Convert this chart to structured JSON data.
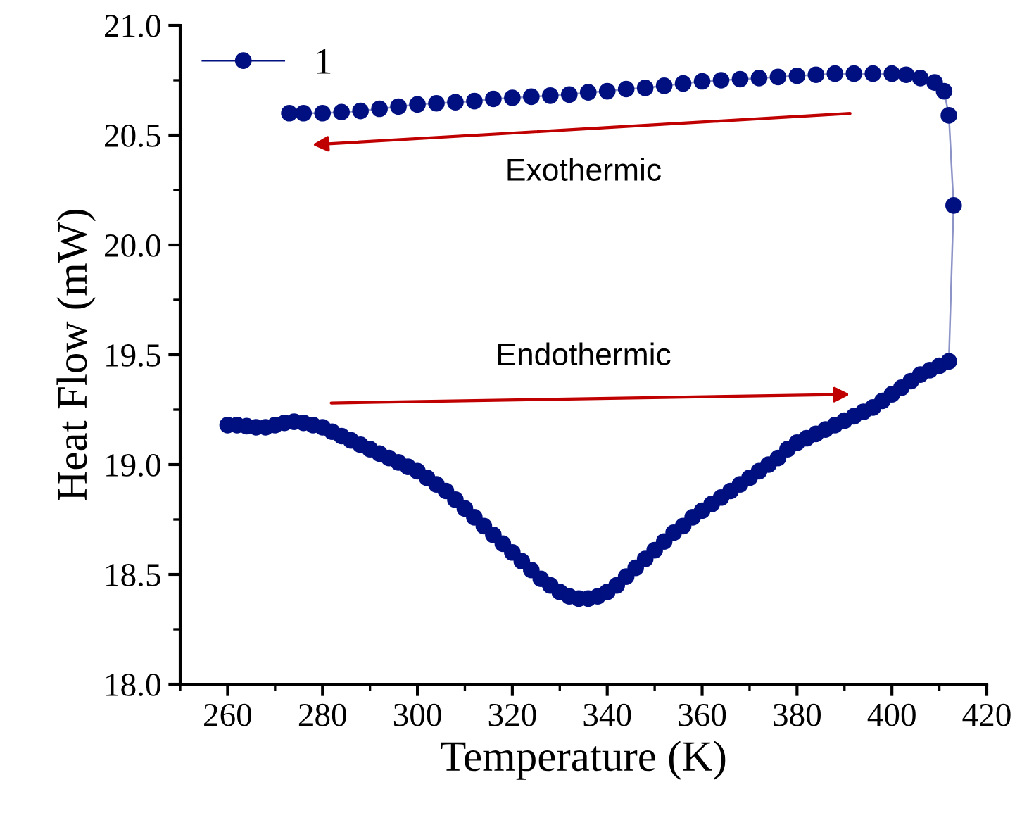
{
  "chart_data": {
    "type": "line",
    "xlabel": "Temperature (K)",
    "ylabel": "Heat Flow (mW)",
    "xlim": [
      250,
      420
    ],
    "xticks": [
      260,
      280,
      300,
      320,
      340,
      360,
      380,
      400,
      420
    ],
    "ylim": [
      18.0,
      21.0
    ],
    "yticks": [
      {
        "value": 18.0,
        "label": "18.0"
      },
      {
        "value": 18.5,
        "label": "18.5"
      },
      {
        "value": 19.0,
        "label": "19.0"
      },
      {
        "value": 19.5,
        "label": "19.5"
      },
      {
        "value": 20.0,
        "label": "20.0"
      },
      {
        "value": 20.5,
        "label": "20.5"
      },
      {
        "value": 21.0,
        "label": "21.0"
      }
    ],
    "grid": false,
    "legend": "top left",
    "marker": "circle",
    "line_style": "solid",
    "annotations": [
      "Exothermic",
      "Endothermic"
    ],
    "series": [
      {
        "name": "1",
        "color": "#001080",
        "x": [
          260,
          262,
          264,
          266,
          268,
          270,
          272,
          274,
          276,
          278,
          280,
          282,
          284,
          286,
          288,
          290,
          292,
          294,
          296,
          298,
          300,
          302,
          304,
          306,
          308,
          310,
          312,
          314,
          316,
          318,
          320,
          322,
          324,
          326,
          328,
          330,
          332,
          334,
          336,
          338,
          340,
          342,
          344,
          346,
          348,
          350,
          352,
          354,
          356,
          358,
          360,
          362,
          364,
          366,
          368,
          370,
          372,
          374,
          376,
          378,
          380,
          382,
          384,
          386,
          388,
          390,
          392,
          394,
          396,
          398,
          400,
          402,
          404,
          406,
          408,
          410,
          412,
          413,
          412,
          411,
          409,
          406,
          403,
          400,
          396,
          392,
          388,
          384,
          380,
          376,
          372,
          368,
          364,
          360,
          356,
          352,
          348,
          344,
          340,
          336,
          332,
          328,
          324,
          320,
          316,
          312,
          308,
          304,
          300,
          296,
          292,
          288,
          284,
          280,
          276,
          273
        ],
        "values": [
          19.18,
          19.18,
          19.175,
          19.17,
          19.17,
          19.18,
          19.19,
          19.195,
          19.19,
          19.18,
          19.17,
          19.15,
          19.13,
          19.11,
          19.09,
          19.07,
          19.05,
          19.03,
          19.01,
          18.99,
          18.97,
          18.94,
          18.91,
          18.88,
          18.84,
          18.8,
          18.76,
          18.72,
          18.68,
          18.64,
          18.6,
          18.56,
          18.52,
          18.48,
          18.45,
          18.42,
          18.4,
          18.39,
          18.39,
          18.4,
          18.42,
          18.45,
          18.49,
          18.53,
          18.57,
          18.61,
          18.65,
          18.69,
          18.72,
          18.76,
          18.79,
          18.82,
          18.85,
          18.88,
          18.91,
          18.94,
          18.97,
          19.0,
          19.03,
          19.07,
          19.1,
          19.12,
          19.14,
          19.16,
          19.18,
          19.2,
          19.22,
          19.24,
          19.26,
          19.29,
          19.32,
          19.35,
          19.38,
          19.41,
          19.43,
          19.45,
          19.47,
          20.18,
          20.59,
          20.7,
          20.74,
          20.76,
          20.775,
          20.78,
          20.78,
          20.78,
          20.78,
          20.775,
          20.77,
          20.765,
          20.76,
          20.755,
          20.75,
          20.745,
          20.735,
          20.725,
          20.715,
          20.71,
          20.7,
          20.695,
          20.685,
          20.68,
          20.675,
          20.67,
          20.665,
          20.655,
          20.65,
          20.645,
          20.64,
          20.63,
          20.62,
          20.61,
          20.605,
          20.6,
          20.6,
          20.6
        ]
      }
    ]
  }
}
